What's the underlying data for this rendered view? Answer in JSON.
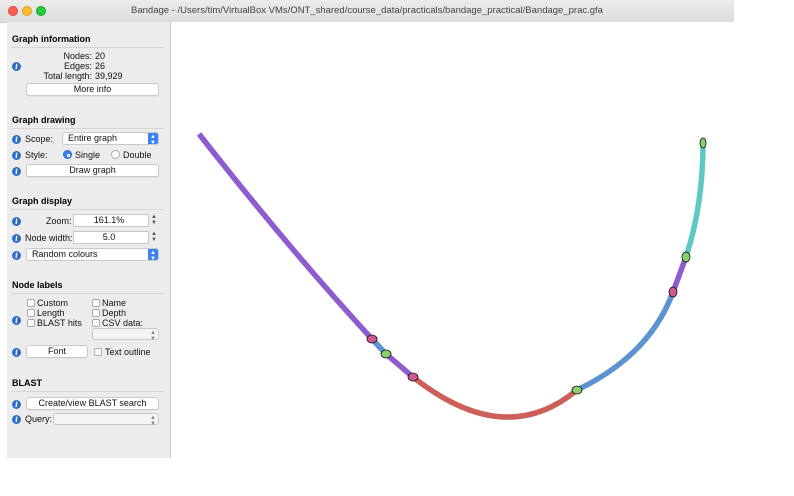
{
  "window": {
    "title": "Bandage - /Users/tim/VirtualBox VMs/ONT_shared/course_data/practicals/bandage_practical/Bandage_prac.gfa"
  },
  "graph_information": {
    "heading": "Graph information",
    "nodes_label": "Nodes:",
    "nodes_value": "20",
    "edges_label": "Edges:",
    "edges_value": "26",
    "length_label": "Total length:",
    "length_value": "39,929",
    "more_info_button": "More info"
  },
  "graph_drawing": {
    "heading": "Graph drawing",
    "scope_label": "Scope:",
    "scope_value": "Entire graph",
    "style_label": "Style:",
    "style_single": "Single",
    "style_double": "Double",
    "style_selected": "Single",
    "draw_button": "Draw graph"
  },
  "graph_display": {
    "heading": "Graph display",
    "zoom_label": "Zoom:",
    "zoom_value": "161.1%",
    "node_width_label": "Node width:",
    "node_width_value": "5.0",
    "colour_scheme": "Random colours"
  },
  "node_labels": {
    "heading": "Node labels",
    "custom": "Custom",
    "name": "Name",
    "length": "Length",
    "depth": "Depth",
    "blast_hits": "BLAST hits",
    "csv_data": "CSV data:",
    "font_button": "Font",
    "text_outline": "Text outline"
  },
  "blast": {
    "heading": "BLAST",
    "search_button": "Create/view BLAST search",
    "query_label": "Query:",
    "query_value": ""
  },
  "graph": {
    "colors": {
      "purple": "#8f5cd0",
      "red": "#cd5f5a",
      "blue": "#5c93d0",
      "teal": "#5ec9c4",
      "green": "#8ad06a",
      "pink": "#cc5a8a"
    }
  }
}
